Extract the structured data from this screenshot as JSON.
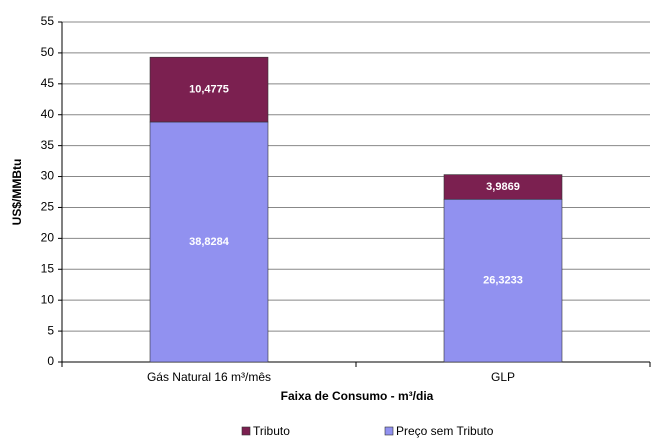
{
  "chart_data": {
    "type": "stacked-bar",
    "x_label": "Faixa de Consumo - m³/dia",
    "y_label": "US$/MMBtu",
    "categories": [
      "Gás Natural 16 m³/mês",
      "GLP"
    ],
    "series": [
      {
        "name": "Preço sem Tributo",
        "color": "#9191f0",
        "values": [
          38.8284,
          26.3233
        ],
        "value_labels": [
          "38,8284",
          "26,3233"
        ]
      },
      {
        "name": "Tributo",
        "color": "#7b2050",
        "values": [
          10.4775,
          3.9869
        ],
        "value_labels": [
          "10,4775",
          "3,9869"
        ]
      }
    ],
    "ylim": [
      0,
      55
    ],
    "yticks": [
      0,
      5,
      10,
      15,
      20,
      25,
      30,
      35,
      40,
      45,
      50,
      55
    ],
    "grid": true,
    "legend": "bottom"
  }
}
